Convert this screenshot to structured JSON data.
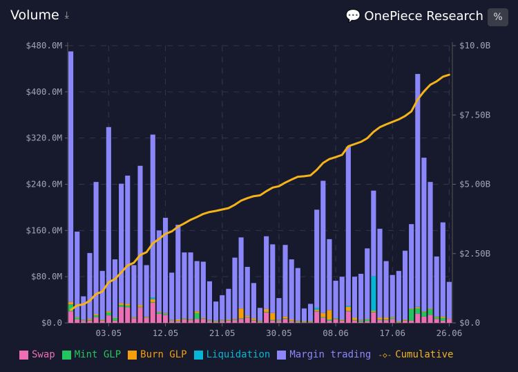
{
  "header": {
    "title": "Volume",
    "download_icon": "download-icon",
    "percent_label": "%"
  },
  "watermark": "OnePiece Research",
  "chart_data": {
    "type": "bar",
    "stacked": true,
    "title": "Volume",
    "xlabel": "",
    "ylabel": "",
    "ylim": [
      0,
      480
    ],
    "y_unit": "M USD",
    "y2lim": [
      0,
      10
    ],
    "y2_unit": "B USD",
    "grid": true,
    "legend_placement": "bottom",
    "y_ticks": [
      "$0.0",
      "$80.0M",
      "$160.0M",
      "$240.0M",
      "$320.0M",
      "$400.0M",
      "$480.0M"
    ],
    "y2_ticks": [
      "$0.0",
      "$2.50B",
      "$5.00B",
      "$7.50B",
      "$10.0B"
    ],
    "x_ticks": [
      "03.05",
      "12.05",
      "21.05",
      "30.05",
      "08.06",
      "17.06",
      "26.06"
    ],
    "categories": [
      "27.04",
      "28.04",
      "29.04",
      "30.04",
      "01.05",
      "02.05",
      "03.05",
      "04.05",
      "05.05",
      "06.05",
      "07.05",
      "08.05",
      "09.05",
      "10.05",
      "11.05",
      "12.05",
      "13.05",
      "14.05",
      "15.05",
      "16.05",
      "17.05",
      "18.05",
      "19.05",
      "20.05",
      "21.05",
      "22.05",
      "23.05",
      "24.05",
      "25.05",
      "26.05",
      "27.05",
      "28.05",
      "29.05",
      "30.05",
      "31.05",
      "01.06",
      "02.06",
      "03.06",
      "04.06",
      "05.06",
      "06.06",
      "07.06",
      "08.06",
      "09.06",
      "10.06",
      "11.06",
      "12.06",
      "13.06",
      "14.06",
      "15.06",
      "16.06",
      "17.06",
      "18.06",
      "19.06",
      "20.06",
      "21.06",
      "22.06",
      "23.06",
      "24.06",
      "25.06",
      "26.06"
    ],
    "series": [
      {
        "name": "Swap",
        "color": "#ec6fb5",
        "values": [
          20,
          6,
          3,
          4,
          10,
          4,
          13,
          4,
          28,
          27,
          8,
          27,
          9,
          35,
          16,
          14,
          3,
          3,
          6,
          5,
          7,
          7,
          3,
          2,
          3,
          4,
          5,
          7,
          9,
          4,
          2,
          18,
          4,
          3,
          7,
          3,
          2,
          1,
          1,
          20,
          9,
          4,
          6,
          4,
          20,
          4,
          2,
          3,
          18,
          5,
          5,
          7,
          1,
          4,
          4,
          16,
          11,
          14,
          7,
          4,
          6
        ]
      },
      {
        "name": "Mint GLP",
        "color": "#22c55e",
        "values": [
          12,
          3,
          1,
          1,
          3,
          1,
          5,
          4,
          3,
          3,
          1,
          1,
          1,
          1,
          2,
          2,
          1,
          1,
          1,
          1,
          10,
          1,
          1,
          1,
          1,
          1,
          1,
          1,
          1,
          1,
          1,
          1,
          1,
          1,
          1,
          1,
          1,
          1,
          1,
          1,
          1,
          2,
          1,
          1,
          1,
          1,
          2,
          3,
          1,
          1,
          1,
          2,
          1,
          1,
          20,
          9,
          8,
          10,
          3,
          5,
          0
        ]
      },
      {
        "name": "Burn GLP",
        "color": "#f59e0b",
        "values": [
          4,
          1,
          1,
          2,
          2,
          1,
          2,
          1,
          3,
          3,
          1,
          3,
          1,
          5,
          1,
          1,
          1,
          2,
          1,
          1,
          3,
          1,
          1,
          1,
          1,
          1,
          1,
          17,
          2,
          3,
          1,
          5,
          12,
          1,
          3,
          2,
          1,
          1,
          1,
          2,
          7,
          16,
          1,
          1,
          7,
          4,
          1,
          1,
          2,
          3,
          3,
          1,
          1,
          1,
          1,
          2,
          1,
          1,
          1,
          2,
          1
        ]
      },
      {
        "name": "Liquidation",
        "color": "#06b6d4",
        "values": [
          0,
          0,
          0,
          0,
          0,
          0,
          0,
          0,
          0,
          0,
          0,
          0,
          0,
          3,
          0,
          0,
          0,
          0,
          0,
          0,
          0,
          0,
          0,
          0,
          0,
          0,
          0,
          0,
          0,
          0,
          0,
          0,
          0,
          0,
          0,
          0,
          0,
          0,
          0,
          3,
          0,
          0,
          0,
          0,
          2,
          0,
          0,
          0,
          60,
          0,
          0,
          0,
          0,
          0,
          0,
          1,
          0,
          0,
          0,
          0,
          0
        ]
      },
      {
        "name": "Margin trading",
        "color": "#8b87fb",
        "values": [
          434,
          148,
          41,
          114,
          229,
          84,
          319,
          101,
          207,
          222,
          90,
          241,
          89,
          282,
          141,
          165,
          82,
          164,
          114,
          115,
          87,
          97,
          67,
          33,
          43,
          53,
          106,
          123,
          85,
          61,
          22,
          126,
          119,
          38,
          124,
          104,
          91,
          22,
          30,
          170,
          229,
          123,
          65,
          74,
          275,
          71,
          80,
          122,
          148,
          154,
          98,
          73,
          87,
          119,
          146,
          403,
          266,
          219,
          104,
          163,
          64
        ]
      }
    ],
    "line_series": {
      "name": "Cumulative",
      "color": "#f5b31a",
      "axis": "right",
      "values": [
        0.47,
        0.63,
        0.67,
        0.8,
        1.04,
        1.13,
        1.47,
        1.58,
        1.82,
        2.07,
        2.17,
        2.45,
        2.55,
        2.87,
        3.03,
        3.21,
        3.3,
        3.47,
        3.59,
        3.72,
        3.82,
        3.93,
        4.0,
        4.04,
        4.09,
        4.14,
        4.26,
        4.41,
        4.5,
        4.57,
        4.6,
        4.75,
        4.88,
        4.93,
        5.06,
        5.17,
        5.27,
        5.29,
        5.32,
        5.52,
        5.77,
        5.91,
        5.98,
        6.06,
        6.37,
        6.45,
        6.53,
        6.66,
        6.89,
        7.06,
        7.16,
        7.25,
        7.34,
        7.46,
        7.63,
        8.06,
        8.35,
        8.59,
        8.71,
        8.88,
        8.95
      ]
    }
  }
}
